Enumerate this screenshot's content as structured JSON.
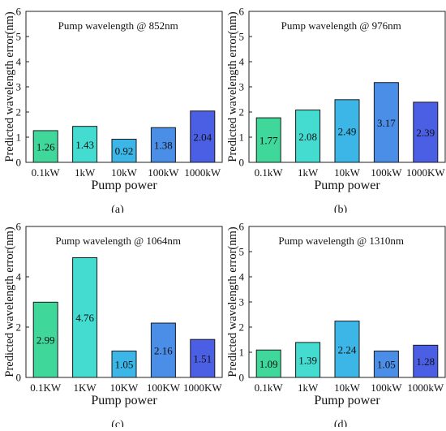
{
  "chart_data": [
    {
      "type": "bar",
      "title": "Pump wavelength @ 852nm",
      "xlabel": "Pump power",
      "ylabel": "Predicted wavelength error(nm)",
      "caption": "(a)",
      "categories": [
        "0.1kW",
        "1kW",
        "10kW",
        "100kW",
        "1000kW"
      ],
      "values": [
        1.26,
        1.43,
        0.92,
        1.38,
        2.04
      ],
      "value_labels": [
        "1.26",
        "1.43",
        "0.92",
        "1.38",
        "2.04"
      ],
      "ylim": [
        0,
        6
      ],
      "yticks": [
        "0",
        "1",
        "2",
        "3",
        "4",
        "5",
        "6"
      ],
      "colors": [
        "#3fd79a",
        "#44dbd0",
        "#3bb6e6",
        "#4a8ee8",
        "#4a5fe3"
      ]
    },
    {
      "type": "bar",
      "title": "Pump wavelength @ 976nm",
      "xlabel": "Pump power",
      "ylabel": "Predicted wavelength error(nm)",
      "caption": "(b)",
      "categories": [
        "0.1kW",
        "1kW",
        "10kW",
        "100kW",
        "1000KW"
      ],
      "values": [
        1.77,
        2.08,
        2.49,
        3.17,
        2.39
      ],
      "value_labels": [
        "1.77",
        "2.08",
        "2.49",
        "3.17",
        "2.39"
      ],
      "ylim": [
        0,
        6
      ],
      "yticks": [
        "0",
        "1",
        "2",
        "3",
        "4",
        "5",
        "6"
      ],
      "colors": [
        "#3fd79a",
        "#44dbd0",
        "#3bb6e6",
        "#4a8ee8",
        "#4a5fe3"
      ]
    },
    {
      "type": "bar",
      "title": "Pump wavelength @ 1064nm",
      "xlabel": "Pump power",
      "ylabel": "Predicted wavelength error(nm)",
      "caption": "(c)",
      "categories": [
        "0.1KW",
        "1KW",
        "10KW",
        "100KW",
        "1000KW"
      ],
      "values": [
        2.99,
        4.76,
        1.05,
        2.16,
        1.51
      ],
      "value_labels": [
        "2.99",
        "4.76",
        "1.05",
        "2.16",
        "1.51"
      ],
      "ylim": [
        0,
        6
      ],
      "yticks": [
        "0",
        "2",
        "4",
        "6"
      ],
      "colors": [
        "#3fd79a",
        "#44dbd0",
        "#3bb6e6",
        "#4a8ee8",
        "#4a5fe3"
      ]
    },
    {
      "type": "bar",
      "title": "Pump wavelength @ 1310nm",
      "xlabel": "Pump power",
      "ylabel": "Predicted wavelength error(nm)",
      "caption": "(d)",
      "categories": [
        "0.1kW",
        "1kW",
        "10kW",
        "100kW",
        "1000kW"
      ],
      "values": [
        1.09,
        1.39,
        2.24,
        1.05,
        1.28
      ],
      "value_labels": [
        "1.09",
        "1.39",
        "2.24",
        "1.05",
        "1.28"
      ],
      "ylim": [
        0,
        6
      ],
      "yticks": [
        "0",
        "1",
        "2",
        "3",
        "4",
        "5",
        "6"
      ],
      "colors": [
        "#3fd79a",
        "#44dbd0",
        "#3bb6e6",
        "#4a8ee8",
        "#4a5fe3"
      ]
    }
  ]
}
